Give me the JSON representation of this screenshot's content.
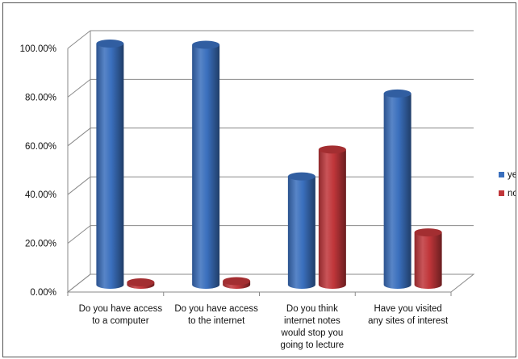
{
  "chart_data": {
    "type": "bar",
    "categories": [
      [
        "Do you have access",
        "to a computer"
      ],
      [
        "Do you have access",
        "to the internet"
      ],
      [
        "Do you think",
        "internet notes",
        "would stop you",
        "going to lecture"
      ],
      [
        "Have you visited",
        "any sites of interest"
      ]
    ],
    "series": [
      {
        "name": "yes",
        "color": "#3a6fbd",
        "values": [
          0.99,
          0.985,
          0.445,
          0.785
        ]
      },
      {
        "name": "no",
        "color": "#c0363a",
        "values": [
          0.01,
          0.015,
          0.555,
          0.215
        ]
      }
    ],
    "yticks": [
      "0.00%",
      "20.00%",
      "40.00%",
      "60.00%",
      "80.00%",
      "100.00%"
    ],
    "ylim": [
      0,
      1
    ],
    "grid": true,
    "legend": "right",
    "style": "3d-cylinder"
  }
}
